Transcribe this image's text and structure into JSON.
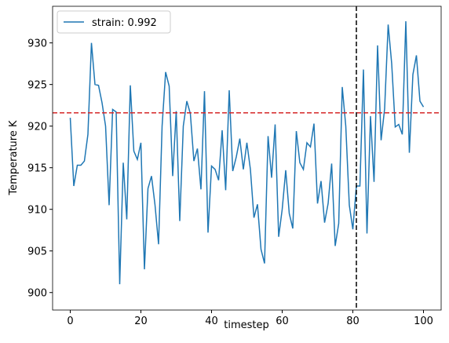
{
  "chart_data": {
    "type": "line",
    "xlabel": "timestep",
    "ylabel": "Temperature K",
    "x": [
      0,
      1,
      2,
      3,
      4,
      5,
      6,
      7,
      8,
      9,
      10,
      11,
      12,
      13,
      14,
      15,
      16,
      17,
      18,
      19,
      20,
      21,
      22,
      23,
      24,
      25,
      26,
      27,
      28,
      29,
      30,
      31,
      32,
      33,
      34,
      35,
      36,
      37,
      38,
      39,
      40,
      41,
      42,
      43,
      44,
      45,
      46,
      47,
      48,
      49,
      50,
      51,
      52,
      53,
      54,
      55,
      56,
      57,
      58,
      59,
      60,
      61,
      62,
      63,
      64,
      65,
      66,
      67,
      68,
      69,
      70,
      71,
      72,
      73,
      74,
      75,
      76,
      77,
      78,
      79,
      80,
      81,
      82,
      83,
      84,
      85,
      86,
      87,
      88,
      89,
      90,
      91,
      92,
      93,
      94,
      95,
      96,
      97,
      98,
      99,
      100
    ],
    "series": [
      {
        "name": "strain: 0.992",
        "color": "#1f77b4",
        "values": [
          921,
          912.8,
          915.3,
          915.3,
          915.8,
          919,
          930,
          925,
          924.9,
          922.8,
          920,
          910.5,
          922,
          921.7,
          901,
          915.6,
          908.8,
          924.9,
          917,
          916,
          918,
          902.8,
          912.5,
          914,
          910.5,
          905.8,
          920,
          926.5,
          924.8,
          914,
          921.8,
          908.6,
          920,
          923,
          921.5,
          915.8,
          917.3,
          912.4,
          924.2,
          907.2,
          915.2,
          914.8,
          913.5,
          919.5,
          912.3,
          924.3,
          914.6,
          916.3,
          918.5,
          914.8,
          918,
          914.8,
          909,
          910.6,
          905.2,
          903.5,
          918.8,
          913.8,
          920.2,
          906.7,
          910,
          914.7,
          909.5,
          907.7,
          919.4,
          915.6,
          914.8,
          918,
          917.5,
          920.3,
          910.7,
          913.4,
          908.4,
          910.7,
          915.5,
          905.6,
          908.3,
          924.7,
          920,
          910.5,
          907.6,
          912.8,
          912.8,
          926.8,
          907.1,
          921.2,
          913.3,
          929.7,
          918.3,
          922.1,
          932.2,
          927.5,
          919.9,
          920.2,
          919,
          932.6,
          916.8,
          926.2,
          928.5,
          923,
          922.3
        ]
      }
    ],
    "hline": {
      "value": 921.6,
      "color": "#d62728"
    },
    "vline": {
      "value": 81,
      "color": "#000000"
    },
    "xlim": [
      -5,
      105
    ],
    "ylim": [
      897.9,
      934.4
    ],
    "xticks": [
      0,
      20,
      40,
      60,
      80,
      100
    ],
    "yticks": [
      900,
      905,
      910,
      915,
      920,
      925,
      930
    ],
    "legend": "upper left"
  }
}
